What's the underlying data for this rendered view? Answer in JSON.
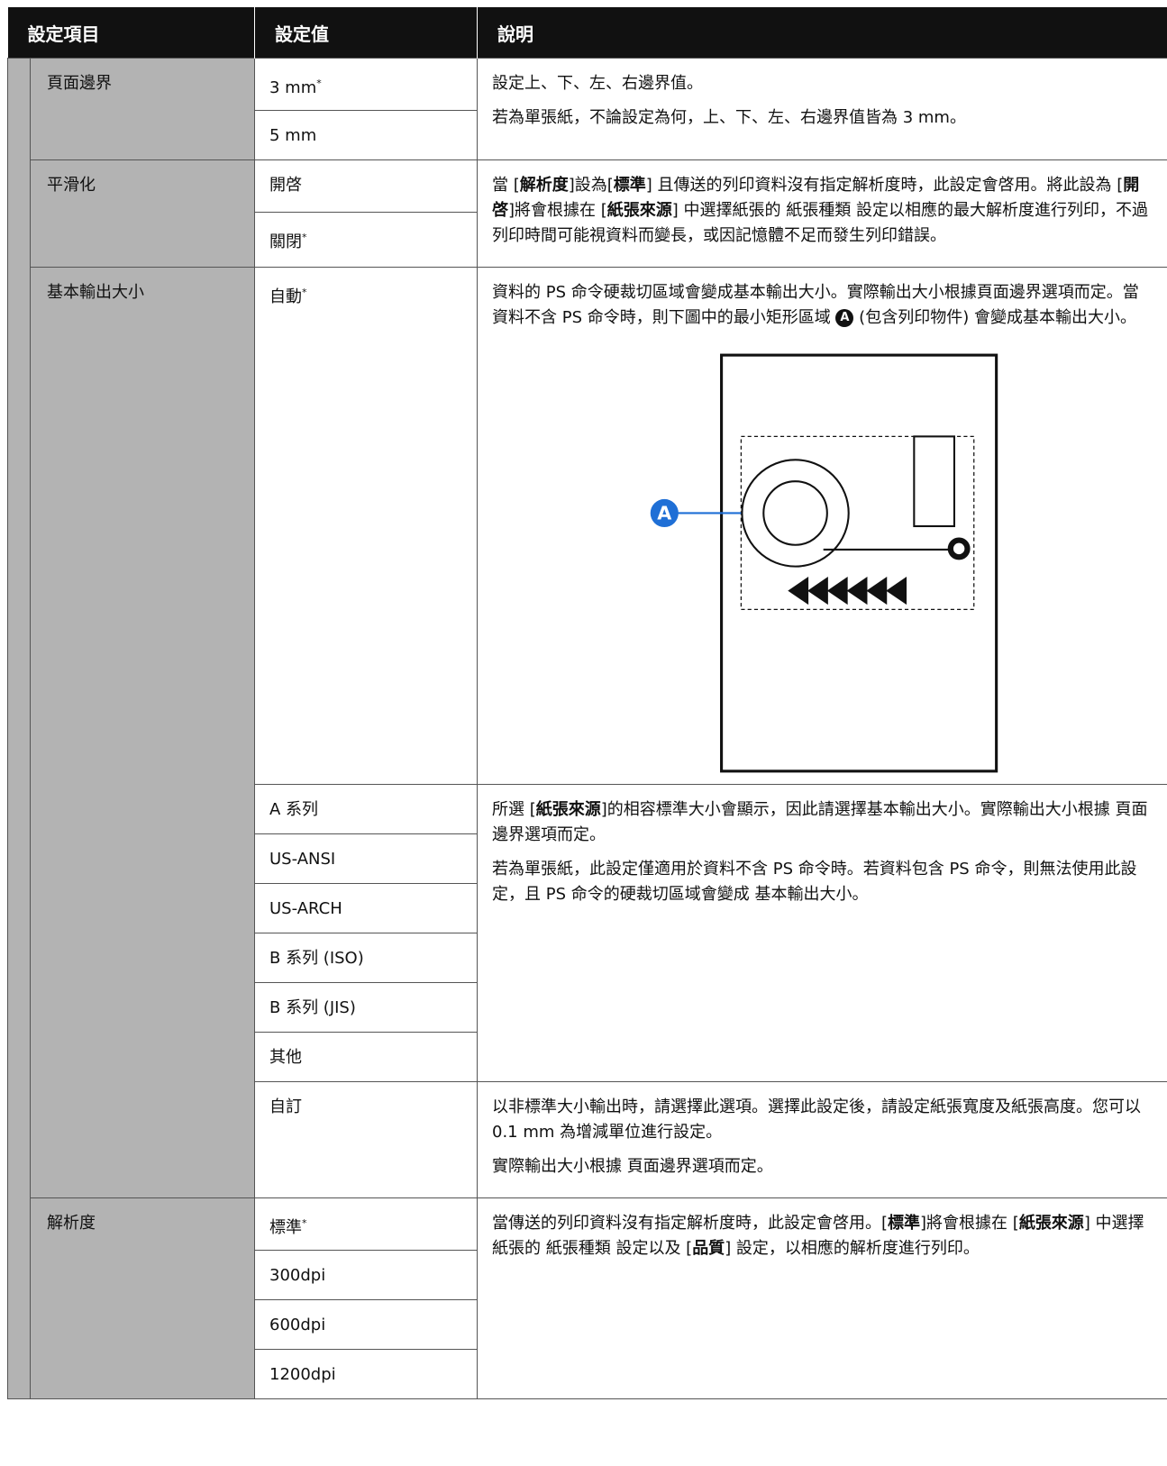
{
  "header": {
    "item": "設定項目",
    "value": "設定值",
    "description": "說明"
  },
  "sections": [
    {
      "item": "頁面邊界",
      "groups": [
        {
          "options": [
            {
              "label": "3 mm",
              "mark": "*"
            },
            {
              "label": "5 mm"
            }
          ],
          "paragraphs": [
            [
              "設定上、下、左、右邊界值。"
            ],
            [
              "若為單張紙，不論設定為何，上、下、左、右邊界值皆為 3 mm。"
            ]
          ]
        }
      ]
    },
    {
      "item": "平滑化",
      "groups": [
        {
          "options": [
            {
              "label": "開啓"
            },
            {
              "label": "關閉",
              "mark": "*"
            }
          ],
          "paragraphs": [
            [
              "當 [",
              {
                "b": "解析度"
              },
              "]設為[",
              {
                "b": "標準"
              },
              "] 且傳送的列印資料沒有指定解析度時，此設定會啓用。將此設為 [",
              {
                "b": "開啓"
              },
              "]將會根據在 [",
              {
                "b": "紙張來源"
              },
              "] 中選擇紙張的 紙張種類 設定以相應的最大解析度進行列印，不過列印時間可能視資料而變長，或因記憶體不足而發生列印錯誤。"
            ]
          ]
        }
      ]
    },
    {
      "item": "基本輸出大小",
      "groups": [
        {
          "options": [
            {
              "label": "自動",
              "mark": "*"
            }
          ],
          "paragraphs": [
            [
              "資料的 PS 命令硬裁切區域會變成基本輸出大小。實際輸出大小根據頁面邊界選項而定。當資料不含 PS 命令時，則下圖中的最小矩形區域 ",
              {
                "badge": "A"
              },
              " (包含列印物件) 會變成基本輸出大小。"
            ]
          ],
          "figure": {
            "label": "A"
          }
        },
        {
          "options": [
            {
              "label": "A 系列"
            },
            {
              "label": "US-ANSI"
            },
            {
              "label": "US-ARCH"
            },
            {
              "label": "B 系列 (ISO)"
            },
            {
              "label": "B 系列 (JIS)"
            },
            {
              "label": "其他"
            }
          ],
          "paragraphs": [
            [
              "所選 [",
              {
                "b": "紙張來源"
              },
              "]的相容標準大小會顯示，因此請選擇基本輸出大小。實際輸出大小根據 頁面邊界選項而定。"
            ],
            [
              "若為單張紙，此設定僅適用於資料不含 PS 命令時。若資料包含 PS 命令，則無法使用此設定，且 PS 命令的硬裁切區域會變成 基本輸出大小。"
            ]
          ]
        },
        {
          "options": [
            {
              "label": "自訂"
            }
          ],
          "paragraphs": [
            [
              "以非標準大小輸出時，請選擇此選項。選擇此設定後，請設定紙張寬度及紙張高度。您可以 0.1 mm 為增減單位進行設定。"
            ],
            [
              "實際輸出大小根據 頁面邊界選項而定。"
            ]
          ]
        }
      ]
    },
    {
      "item": "解析度",
      "groups": [
        {
          "options": [
            {
              "label": "標準",
              "mark": "*"
            },
            {
              "label": "300dpi"
            },
            {
              "label": "600dpi"
            },
            {
              "label": "1200dpi"
            }
          ],
          "paragraphs": [
            [
              "當傳送的列印資料沒有指定解析度時，此設定會啓用。[",
              {
                "b": "標準"
              },
              "]將會根據在 [",
              {
                "b": "紙張來源"
              },
              "] 中選擇紙張的 紙張種類 設定以及 [",
              {
                "b": "品質"
              },
              "] 設定，以相應的解析度進行列印。"
            ]
          ]
        }
      ]
    }
  ]
}
